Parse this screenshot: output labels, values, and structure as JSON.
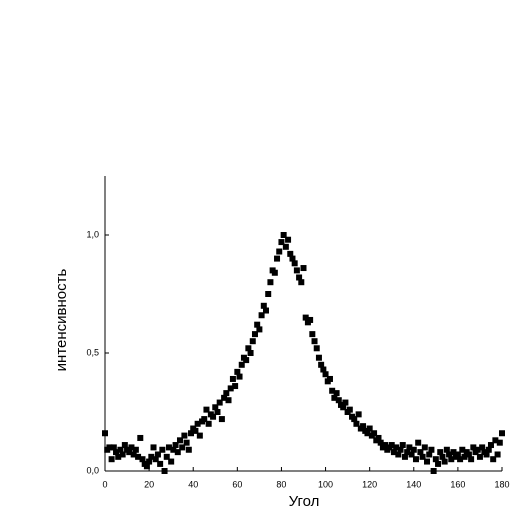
{
  "chart_data": {
    "type": "scatter",
    "x_label": "Угол",
    "y_label": "интенсивность",
    "series": [
      {
        "color": "#000000",
        "x": [
          0,
          1,
          2,
          3,
          4,
          5,
          6,
          7,
          8,
          9,
          10,
          11,
          12,
          13,
          14,
          15,
          16,
          17,
          18,
          19,
          20,
          21,
          22,
          23,
          24,
          25,
          26,
          27,
          28,
          29,
          30,
          31,
          32,
          33,
          34,
          35,
          36,
          37,
          38,
          39,
          40,
          41,
          42,
          43,
          44,
          45,
          46,
          47,
          48,
          49,
          50,
          51,
          52,
          53,
          54,
          55,
          56,
          57,
          58,
          59,
          60,
          61,
          62,
          63,
          64,
          65,
          66,
          67,
          68,
          69,
          70,
          71,
          72,
          73,
          74,
          75,
          76,
          77,
          78,
          79,
          80,
          81,
          82,
          83,
          84,
          85,
          86,
          87,
          88,
          89,
          90,
          91,
          92,
          93,
          94,
          95,
          96,
          97,
          98,
          99,
          100,
          101,
          102,
          103,
          104,
          105,
          106,
          107,
          108,
          109,
          110,
          111,
          112,
          113,
          114,
          115,
          116,
          117,
          118,
          119,
          120,
          121,
          122,
          123,
          124,
          125,
          126,
          127,
          128,
          129,
          130,
          131,
          132,
          133,
          134,
          135,
          136,
          137,
          138,
          139,
          140,
          141,
          142,
          143,
          144,
          145,
          146,
          147,
          148,
          149,
          150,
          151,
          152,
          153,
          154,
          155,
          156,
          157,
          158,
          159,
          160,
          161,
          162,
          163,
          164,
          165,
          166,
          167,
          168,
          169,
          170,
          171,
          172,
          173,
          174,
          175,
          176,
          177,
          178,
          179,
          180
        ],
        "values": [
          0.16,
          0.09,
          0.1,
          0.05,
          0.1,
          0.08,
          0.06,
          0.09,
          0.07,
          0.11,
          0.09,
          0.08,
          0.1,
          0.07,
          0.09,
          0.06,
          0.14,
          0.05,
          0.03,
          0.02,
          0.04,
          0.06,
          0.1,
          0.05,
          0.07,
          0.03,
          0.09,
          0.0,
          0.06,
          0.1,
          0.04,
          0.09,
          0.11,
          0.08,
          0.13,
          0.1,
          0.15,
          0.12,
          0.09,
          0.16,
          0.18,
          0.17,
          0.2,
          0.15,
          0.21,
          0.22,
          0.26,
          0.2,
          0.24,
          0.23,
          0.27,
          0.25,
          0.29,
          0.22,
          0.31,
          0.33,
          0.3,
          0.35,
          0.39,
          0.36,
          0.42,
          0.4,
          0.45,
          0.48,
          0.47,
          0.52,
          0.5,
          0.55,
          0.58,
          0.62,
          0.6,
          0.66,
          0.7,
          0.68,
          0.75,
          0.8,
          0.85,
          0.84,
          0.9,
          0.93,
          0.97,
          1.0,
          0.95,
          0.98,
          0.92,
          0.9,
          0.88,
          0.85,
          0.82,
          0.8,
          0.86,
          0.65,
          0.63,
          0.64,
          0.58,
          0.55,
          0.52,
          0.48,
          0.45,
          0.43,
          0.41,
          0.38,
          0.39,
          0.34,
          0.31,
          0.33,
          0.3,
          0.28,
          0.27,
          0.29,
          0.25,
          0.26,
          0.23,
          0.22,
          0.2,
          0.24,
          0.18,
          0.19,
          0.17,
          0.16,
          0.18,
          0.15,
          0.16,
          0.13,
          0.14,
          0.12,
          0.1,
          0.11,
          0.09,
          0.1,
          0.11,
          0.08,
          0.1,
          0.07,
          0.09,
          0.11,
          0.06,
          0.08,
          0.1,
          0.07,
          0.09,
          0.05,
          0.12,
          0.08,
          0.06,
          0.1,
          0.04,
          0.07,
          0.09,
          0.0,
          0.05,
          0.03,
          0.08,
          0.06,
          0.04,
          0.09,
          0.07,
          0.05,
          0.08,
          0.06,
          0.07,
          0.05,
          0.09,
          0.06,
          0.08,
          0.07,
          0.05,
          0.1,
          0.08,
          0.09,
          0.06,
          0.1,
          0.08,
          0.07,
          0.09,
          0.11,
          0.05,
          0.13,
          0.07,
          0.12,
          0.16
        ]
      }
    ],
    "xlim": [
      0,
      180
    ],
    "xticks": [
      0,
      20,
      40,
      60,
      80,
      100,
      120,
      140,
      160,
      180
    ],
    "ylim": [
      0,
      1.25
    ],
    "yticks": [
      {
        "value": 0,
        "label": "0,0"
      },
      {
        "value": 0.5,
        "label": "0,5"
      },
      {
        "value": 1,
        "label": "1,0"
      }
    ]
  }
}
